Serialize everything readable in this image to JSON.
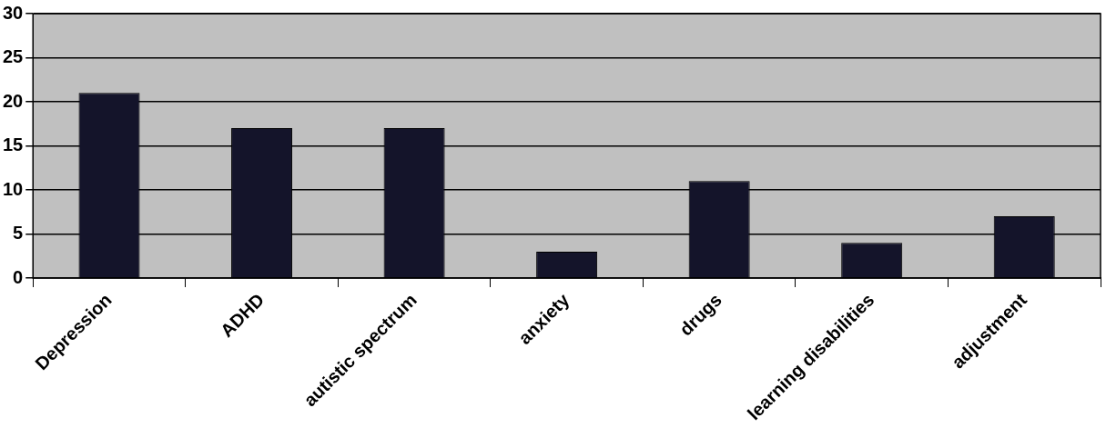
{
  "chart_data": {
    "type": "bar",
    "categories": [
      "Depression",
      "ADHD",
      "autistic spectrum",
      "anxiety",
      "drugs",
      "learning disabilities",
      "adjustment"
    ],
    "values": [
      21,
      17,
      17,
      3,
      11,
      4,
      7
    ],
    "color": "#14142a",
    "ylim": [
      0,
      30
    ],
    "yticks": [
      0,
      5,
      10,
      15,
      20,
      25,
      30
    ],
    "grid": "y",
    "legend": false
  }
}
